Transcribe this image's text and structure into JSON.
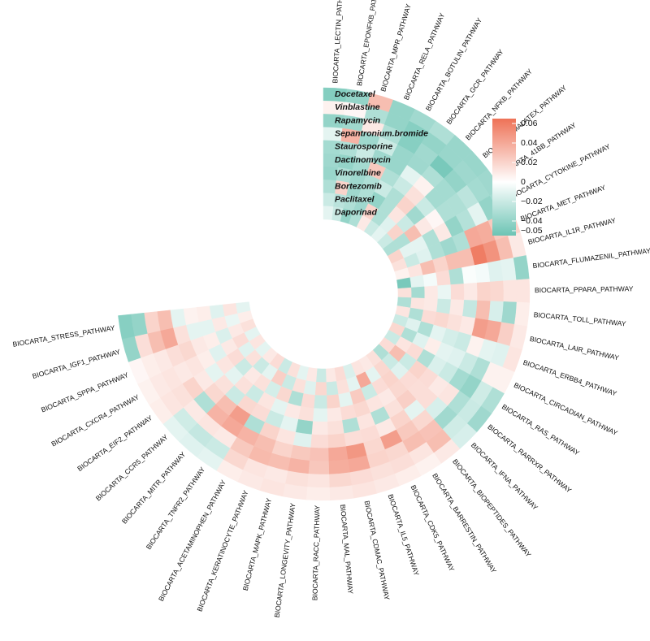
{
  "chart_data": {
    "type": "heatmap",
    "layout": "circular",
    "drugs": [
      "Docetaxel",
      "Vinblastine",
      "Rapamycin",
      "Sepantronium.bromide",
      "Staurosporine",
      "Dactinomycin",
      "Vinorelbine",
      "Bortezomib",
      "Paclitaxel",
      "Daporinad"
    ],
    "pathways": [
      "BIOCARTA_LECTIN_PATHWAY",
      "BIOCARTA_EPONFKB_PATHWAY",
      "BIOCARTA_MPR_PATHWAY",
      "BIOCARTA_RELA_PATHWAY",
      "BIOCARTA_BOTULIN_PATHWAY",
      "BIOCARTA_GCR_PATHWAY",
      "BIOCARTA_NFKB_PATHWAY",
      "BIOCARTA_MALATEX_PATHWAY",
      "BIOCARTA_41BB_PATHWAY",
      "BIOCARTA_CYTOKINE_PATHWAY",
      "BIOCARTA_MET_PATHWAY",
      "BIOCARTA_IL1R_PATHWAY",
      "BIOCARTA_FLUMAZENIL_PATHWAY",
      "BIOCARTA_PPARA_PATHWAY",
      "BIOCARTA_TOLL_PATHWAY",
      "BIOCARTA_LAIR_PATHWAY",
      "BIOCARTA_ERBB4_PATHWAY",
      "BIOCARTA_CIRCADIAN_PATHWAY",
      "BIOCARTA_RAS_PATHWAY",
      "BIOCARTA_RARRXR_PATHWAY",
      "BIOCARTA_IFNA_PATHWAY",
      "BIOCARTA_BIOPEPTIDES_PATHWAY",
      "BIOCARTA_BARRESTIN_PATHWAY",
      "BIOCARTA_CDK5_PATHWAY",
      "BIOCARTA_IL5_PATHWAY",
      "BIOCARTA_CDMAC_PATHWAY",
      "BIOCARTA_MAL_PATHWAY",
      "BIOCARTA_RACC_PATHWAY",
      "BIOCARTA_LONGEVITY_PATHWAY",
      "BIOCARTA_MAPK_PATHWAY",
      "BIOCARTA_KERATINOCYTE_PATHWAY",
      "BIOCARTA_ACETAMINOPHEN_PATHWAY",
      "BIOCARTA_TNFR2_PATHWAY",
      "BIOCARTA_MITR_PATHWAY",
      "BIOCARTA_CCR5_PATHWAY",
      "BIOCARTA_EIF2_PATHWAY",
      "BIOCARTA_CXCR4_PATHWAY",
      "BIOCARTA_SPPA_PATHWAY",
      "BIOCARTA_IGF1_PATHWAY",
      "BIOCARTA_STRESS_PATHWAY"
    ],
    "values": [
      [
        -0.046,
        -0.04,
        0.03,
        -0.04,
        -0.035,
        -0.03,
        -0.038,
        -0.038,
        -0.036,
        -0.034,
        0.02,
        0.01,
        -0.04,
        0.012,
        0.008,
        0.01,
        0.012,
        0.006,
        -0.03,
        -0.036,
        -0.015,
        0.01,
        0.006,
        0.008,
        0.01,
        0.012,
        0.01,
        0.008,
        0.01,
        0.012,
        0.01,
        0.008,
        -0.01,
        -0.012,
        -0.01,
        0.008,
        0.006,
        0.004,
        -0.04,
        -0.045
      ],
      [
        0.006,
        0.004,
        -0.03,
        -0.04,
        -0.045,
        -0.04,
        -0.038,
        -0.036,
        -0.034,
        -0.04,
        0.025,
        0.03,
        -0.01,
        0.012,
        -0.036,
        0.022,
        -0.012,
        0.006,
        -0.018,
        -0.02,
        -0.018,
        0.03,
        0.012,
        0.015,
        0.014,
        0.016,
        0.018,
        0.012,
        0.014,
        0.01,
        0.012,
        0.018,
        -0.02,
        -0.022,
        -0.018,
        0.012,
        0.01,
        0.008,
        0.015,
        -0.04
      ],
      [
        -0.04,
        -0.036,
        0.01,
        -0.03,
        -0.045,
        -0.035,
        -0.05,
        -0.04,
        -0.025,
        -0.01,
        0.038,
        0.05,
        -0.012,
        0.018,
        -0.015,
        0.04,
        -0.01,
        -0.03,
        -0.04,
        -0.03,
        -0.035,
        0.028,
        0.03,
        0.018,
        0.02,
        0.04,
        0.038,
        0.026,
        0.035,
        0.03,
        0.032,
        0.025,
        0.01,
        0.012,
        0.01,
        0.014,
        0.012,
        0.01,
        0.03,
        0.02
      ],
      [
        -0.01,
        0.035,
        -0.036,
        -0.02,
        -0.038,
        -0.036,
        -0.03,
        -0.034,
        -0.03,
        -0.028,
        0.04,
        0.06,
        -0.004,
        0.02,
        0.03,
        0.045,
        0.006,
        -0.02,
        -0.034,
        0.012,
        -0.015,
        0.018,
        0.025,
        0.045,
        0.018,
        0.048,
        0.04,
        0.028,
        0.025,
        0.02,
        0.03,
        0.035,
        0.04,
        0.035,
        -0.03,
        0.02,
        0.01,
        0.015,
        0.04,
        0.03
      ],
      [
        -0.034,
        -0.03,
        -0.02,
        -0.036,
        -0.038,
        -0.01,
        0.006,
        -0.034,
        -0.03,
        -0.04,
        -0.03,
        0.03,
        -0.002,
        0.01,
        -0.022,
        0.01,
        -0.02,
        -0.012,
        -0.02,
        0.01,
        0.015,
        -0.01,
        0.02,
        0.01,
        0.016,
        0.015,
        0.02,
        0.016,
        -0.012,
        0.012,
        0.02,
        -0.03,
        0.045,
        0.03,
        0.018,
        0.01,
        0.012,
        0.018,
        0.014,
        -0.01
      ],
      [
        -0.036,
        -0.04,
        -0.034,
        0.025,
        -0.03,
        -0.02,
        0.014,
        -0.02,
        0.004,
        0.01,
        -0.036,
        0.03,
        -0.03,
        0.016,
        0.01,
        0.014,
        -0.016,
        -0.01,
        -0.014,
        0.016,
        0.015,
        0.022,
        0.014,
        -0.03,
        0.012,
        -0.03,
        0.014,
        0.01,
        -0.04,
        -0.01,
        -0.02,
        0.016,
        0.018,
        -0.02,
        0.014,
        -0.01,
        0.008,
        0.01,
        -0.01,
        0.006
      ],
      [
        -0.038,
        -0.03,
        -0.036,
        -0.03,
        -0.02,
        -0.03,
        0.02,
        -0.035,
        0.01,
        -0.03,
        -0.03,
        0.02,
        0.016,
        -0.008,
        -0.02,
        0.018,
        -0.01,
        0.008,
        -0.03,
        0.02,
        0.016,
        0.018,
        0.01,
        0.012,
        0.018,
        0.016,
        0.01,
        -0.01,
        0.014,
        0.01,
        -0.01,
        0.012,
        -0.02,
        0.014,
        -0.01,
        0.012,
        -0.012,
        0.008,
        -0.01,
        0.008
      ],
      [
        -0.03,
        0.02,
        -0.036,
        -0.03,
        -0.04,
        -0.03,
        0.012,
        -0.02,
        0.03,
        -0.01,
        -0.012,
        0.03,
        -0.004,
        0.01,
        0.01,
        0.016,
        -0.03,
        -0.012,
        0.016,
        -0.02,
        -0.012,
        0.02,
        0.016,
        -0.02,
        0.024,
        -0.01,
        0.02,
        -0.02,
        0.016,
        -0.03,
        0.018,
        -0.016,
        0.014,
        0.01,
        -0.02,
        0.016,
        0.01,
        -0.014,
        0.01,
        -0.012
      ],
      [
        -0.02,
        -0.026,
        -0.03,
        -0.036,
        0.02,
        -0.03,
        -0.012,
        0.02,
        -0.03,
        -0.01,
        -0.02,
        0.012,
        -0.01,
        -0.034,
        0.012,
        -0.03,
        -0.012,
        -0.03,
        0.012,
        0.03,
        -0.02,
        0.018,
        -0.01,
        0.04,
        -0.01,
        0.014,
        -0.02,
        0.018,
        -0.012,
        0.014,
        -0.02,
        0.022,
        -0.01,
        -0.02,
        0.014,
        -0.012,
        0.016,
        0.01,
        -0.008,
        0.012
      ],
      [
        -0.01,
        -0.02,
        -0.04,
        -0.03,
        0.01,
        -0.02,
        -0.01,
        -0.02,
        -0.03,
        0.02,
        0.014,
        0.006,
        -0.05,
        0.014,
        -0.03,
        0.012,
        -0.02,
        0.018,
        -0.02,
        0.016,
        -0.03,
        0.014,
        0.01,
        0.012,
        -0.014,
        0.016,
        0.01,
        -0.02,
        0.01,
        -0.01,
        0.014,
        -0.02,
        0.016,
        0.01,
        -0.01,
        0.012,
        -0.01,
        0.014,
        0.008,
        -0.01
      ]
    ],
    "colorbar": {
      "ticks": [
        0.06,
        0.04,
        0.02,
        0,
        -0.02,
        -0.04,
        -0.05
      ],
      "tick_labels": [
        "0.06",
        "0.04",
        "0.02",
        "0",
        "−0.02",
        "−0.04",
        "−0.05"
      ],
      "range": [
        -0.055,
        0.065
      ],
      "colors": {
        "low": "#6cc4b4",
        "mid": "#ffffff",
        "high": "#ee7257"
      },
      "placement": "right"
    }
  }
}
